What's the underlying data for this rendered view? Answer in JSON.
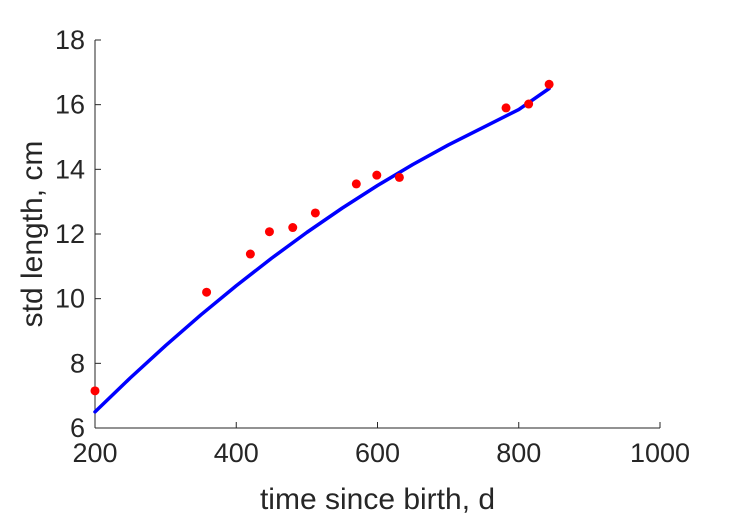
{
  "chart_data": {
    "type": "scatter",
    "xlabel": "time since birth, d",
    "ylabel": "std length, cm",
    "xlim": [
      200,
      1000
    ],
    "ylim": [
      6,
      18
    ],
    "x_ticks": [
      "200",
      "400",
      "600",
      "800",
      "1000"
    ],
    "y_ticks": [
      "6",
      "8",
      "10",
      "12",
      "14",
      "16",
      "18"
    ],
    "grid": false,
    "box": "off",
    "colors": {
      "points": "#ff0000",
      "fit": "#0000ff",
      "axis": "#262626"
    },
    "series": [
      {
        "kind": "scatter",
        "x": [
          200,
          358,
          420,
          447,
          480,
          512,
          570,
          599,
          631,
          782,
          814,
          843
        ],
        "y": [
          7.15,
          10.2,
          11.38,
          12.07,
          12.2,
          12.65,
          13.55,
          13.82,
          13.75,
          15.9,
          16.02,
          16.63
        ]
      },
      {
        "kind": "line",
        "x": [
          200,
          250,
          300,
          350,
          400,
          450,
          500,
          550,
          600,
          650,
          700,
          750,
          800,
          843
        ],
        "y": [
          6.5,
          7.55,
          8.55,
          9.5,
          10.4,
          11.25,
          12.05,
          12.8,
          13.5,
          14.15,
          14.75,
          15.3,
          15.85,
          16.5
        ]
      }
    ]
  }
}
